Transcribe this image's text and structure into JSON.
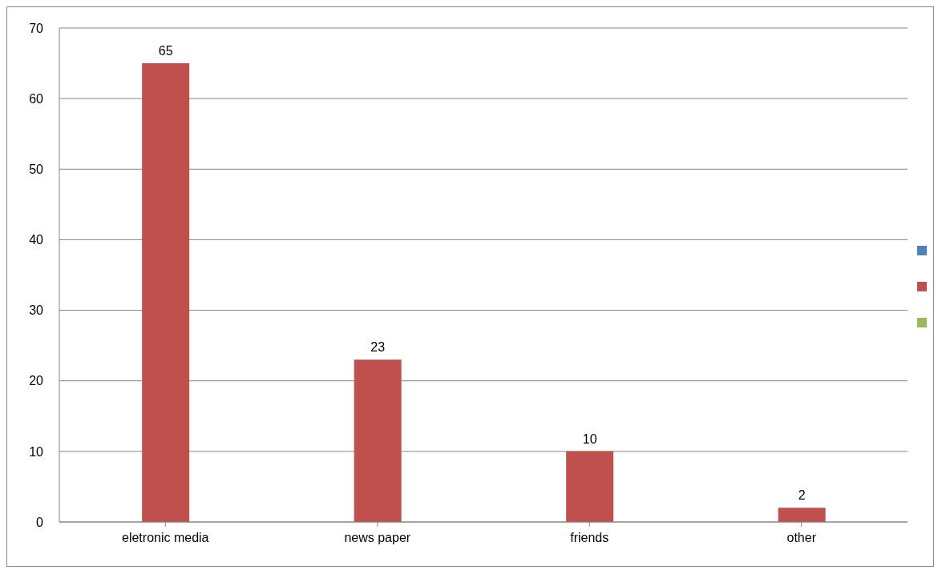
{
  "chart_data": {
    "type": "bar",
    "categories": [
      "eletronic media",
      "news paper",
      "friends",
      "other"
    ],
    "series": [
      {
        "color": "#4f81bd",
        "values": [
          null,
          null,
          null,
          null
        ]
      },
      {
        "color": "#c0504d",
        "values": [
          65,
          23,
          10,
          2
        ]
      },
      {
        "color": "#9bbb59",
        "values": [
          null,
          null,
          null,
          null
        ]
      }
    ],
    "ylim": [
      0,
      70
    ],
    "yticks": [
      0,
      10,
      20,
      30,
      40,
      50,
      60,
      70
    ],
    "grid": "y",
    "data_labels": true
  }
}
